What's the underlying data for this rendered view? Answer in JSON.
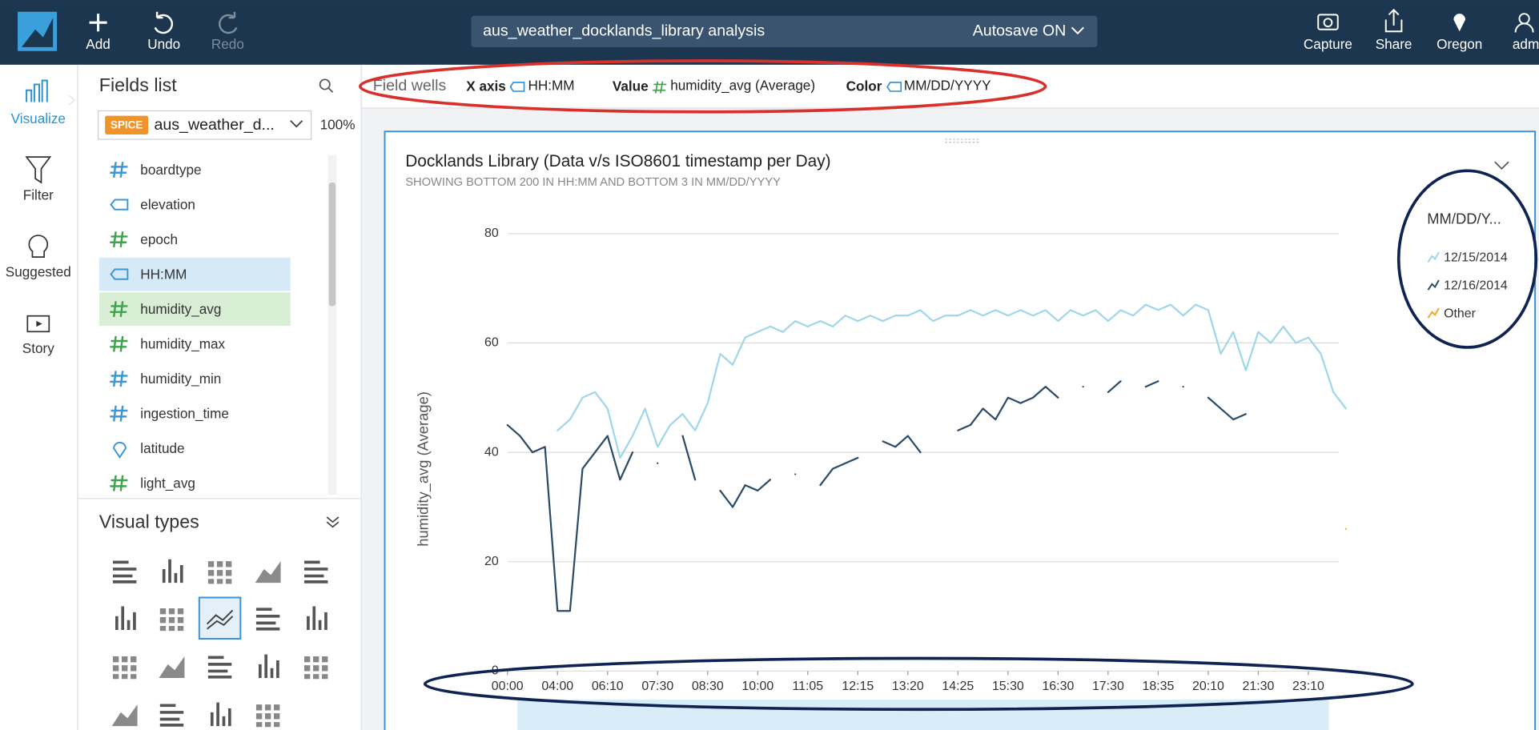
{
  "top_bar": {
    "analysis_name": "aus_weather_docklands_library analysis",
    "autosave": "Autosave ON",
    "left_buttons": [
      "Add",
      "Undo",
      "Redo"
    ],
    "right_buttons": [
      "Capture",
      "Share",
      "Oregon",
      "admin/"
    ]
  },
  "sidebar": [
    "Visualize",
    "Filter",
    "Suggested",
    "Story"
  ],
  "fields_panel": {
    "title": "Fields list",
    "badge": "SPICE",
    "dataset": "aus_weather_d...",
    "zoom": "100%",
    "fields": [
      {
        "name": "boardtype",
        "kind": "number-dimension"
      },
      {
        "name": "elevation",
        "kind": "text"
      },
      {
        "name": "epoch",
        "kind": "measure"
      },
      {
        "name": "HH:MM",
        "kind": "text",
        "selected": "x-axis"
      },
      {
        "name": "humidity_avg",
        "kind": "measure",
        "selected": "value"
      },
      {
        "name": "humidity_max",
        "kind": "measure"
      },
      {
        "name": "humidity_min",
        "kind": "number-dimension"
      },
      {
        "name": "ingestion_time",
        "kind": "number-dimension"
      },
      {
        "name": "latitude",
        "kind": "geo"
      },
      {
        "name": "light_avg",
        "kind": "measure"
      }
    ],
    "visual_types_title": "Visual types"
  },
  "field_wells": {
    "title": "Field wells",
    "x_axis_label": "X axis",
    "x_axis_field": "HH:MM",
    "value_label": "Value",
    "value_field": "humidity_avg (Average)",
    "color_label": "Color",
    "color_field": "MM/DD/YYYY"
  },
  "chart_data": {
    "type": "line",
    "title": "Docklands Library (Data v/s ISO8601 timestamp per Day)",
    "subtitle": "SHOWING BOTTOM 200 IN HH:MM AND BOTTOM 3 IN MM/DD/YYYY",
    "y_label": "humidity_avg (Average)",
    "legend_title": "MM/DD/Y...",
    "legend_position": "right",
    "grid": true,
    "ylim": [
      0,
      80
    ],
    "yticks": [
      0,
      20,
      40,
      60,
      80
    ],
    "categories": [
      "00:00",
      null,
      null,
      null,
      "04:00",
      null,
      null,
      null,
      "06:10",
      null,
      null,
      null,
      "07:30",
      null,
      null,
      null,
      "08:30",
      null,
      null,
      null,
      "10:00",
      null,
      null,
      null,
      "11:05",
      null,
      null,
      null,
      "12:15",
      null,
      null,
      null,
      "13:20",
      null,
      null,
      null,
      "14:25",
      null,
      null,
      null,
      "15:30",
      null,
      null,
      null,
      "16:30",
      null,
      null,
      null,
      "17:30",
      null,
      null,
      null,
      "18:35",
      null,
      null,
      null,
      "20:10",
      null,
      null,
      null,
      "21:30",
      null,
      null,
      null,
      "23:10",
      null,
      null,
      null
    ],
    "series": [
      {
        "name": "12/15/2014",
        "color": "#9fd6ea",
        "values": [
          null,
          null,
          null,
          null,
          44,
          46,
          50,
          51,
          48,
          39,
          43,
          48,
          41,
          45,
          47,
          44,
          49,
          58,
          56,
          61,
          62,
          63,
          62,
          64,
          63,
          64,
          63,
          65,
          64,
          65,
          64,
          65,
          65,
          66,
          64,
          65,
          65,
          66,
          65,
          66,
          65,
          66,
          65,
          66,
          64,
          66,
          65,
          66,
          64,
          66,
          65,
          67,
          66,
          67,
          65,
          67,
          66,
          58,
          62,
          55,
          62,
          60,
          63,
          60,
          61,
          58,
          51,
          48
        ]
      },
      {
        "name": "12/16/2014",
        "color": "#2b4a67",
        "values": [
          45,
          43,
          40,
          41,
          11,
          11,
          37,
          40,
          43,
          35,
          40,
          null,
          38,
          null,
          43,
          35,
          null,
          33,
          30,
          34,
          33,
          35,
          null,
          36,
          null,
          34,
          37,
          38,
          39,
          null,
          42,
          41,
          43,
          40,
          null,
          null,
          44,
          45,
          48,
          46,
          50,
          49,
          50,
          52,
          50,
          null,
          52,
          null,
          51,
          53,
          null,
          52,
          53,
          null,
          52,
          null,
          50,
          48,
          46,
          47,
          null,
          null,
          null,
          null,
          null,
          null,
          null,
          null
        ]
      },
      {
        "name": "Other",
        "color": "#f5a623",
        "values": [
          null,
          null,
          null,
          null,
          null,
          null,
          null,
          null,
          null,
          null,
          null,
          null,
          null,
          null,
          null,
          null,
          null,
          null,
          null,
          null,
          null,
          null,
          null,
          null,
          null,
          null,
          null,
          null,
          null,
          null,
          null,
          null,
          null,
          null,
          null,
          null,
          null,
          null,
          null,
          null,
          null,
          null,
          null,
          null,
          null,
          null,
          null,
          null,
          null,
          null,
          null,
          null,
          null,
          null,
          null,
          null,
          null,
          null,
          null,
          null,
          null,
          null,
          null,
          null,
          null,
          null,
          null,
          26
        ]
      }
    ]
  }
}
